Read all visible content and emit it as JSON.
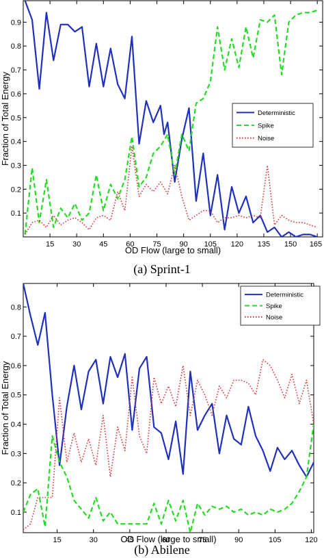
{
  "chart_data": [
    {
      "type": "line",
      "caption": "(a) Sprint-1",
      "xlabel": "OD Flow (large to small)",
      "ylabel": "Fraction of Total Energy",
      "xlim": [
        0,
        168
      ],
      "ylim": [
        0,
        0.99
      ],
      "xticks": [
        15,
        30,
        45,
        60,
        75,
        90,
        105,
        120,
        135,
        150,
        165
      ],
      "xtick_labels": [
        "15",
        "30",
        "45",
        "60",
        "75",
        "90",
        "105",
        "120",
        "135",
        "150",
        "165"
      ],
      "yticks": [
        0.1,
        0.2,
        0.3,
        0.4,
        0.5,
        0.6,
        0.7,
        0.8,
        0.9
      ],
      "ytick_labels": [
        "0.1",
        "0.2",
        "0.3",
        "0.4",
        "0.5",
        "0.6",
        "0.7",
        "0.8",
        "0.9"
      ],
      "grid": false,
      "legend_position": "middle-right",
      "series": [
        {
          "name": "Deterministic",
          "color": "#1f2fbf",
          "dash": "solid",
          "x": [
            1,
            5,
            9,
            13,
            17,
            21,
            25,
            29,
            33,
            37,
            41,
            45,
            49,
            53,
            57,
            61,
            65,
            69,
            73,
            77,
            79,
            81,
            85,
            89,
            93,
            97,
            101,
            105,
            109,
            113,
            117,
            121,
            125,
            129,
            133,
            137,
            141,
            145,
            149,
            153,
            157,
            161,
            165
          ],
          "y": [
            0.99,
            0.91,
            0.62,
            0.94,
            0.74,
            0.89,
            0.89,
            0.86,
            0.88,
            0.63,
            0.81,
            0.63,
            0.79,
            0.64,
            0.58,
            0.84,
            0.39,
            0.57,
            0.48,
            0.55,
            0.43,
            0.48,
            0.23,
            0.41,
            0.54,
            0.15,
            0.35,
            0.09,
            0.26,
            0.03,
            0.21,
            0.1,
            0.17,
            0.06,
            0.09,
            0.02,
            0.04,
            0.0,
            0.02,
            0.0,
            0.01,
            0.01,
            0.0
          ]
        },
        {
          "name": "Spike",
          "color": "#22dd22",
          "dash": "dashed",
          "x": [
            1,
            5,
            9,
            13,
            17,
            21,
            25,
            29,
            33,
            37,
            41,
            45,
            49,
            53,
            57,
            61,
            65,
            69,
            73,
            77,
            81,
            85,
            89,
            93,
            97,
            101,
            105,
            109,
            113,
            117,
            121,
            125,
            129,
            133,
            137,
            141,
            145,
            149,
            153,
            157,
            161,
            165
          ],
          "y": [
            0.01,
            0.29,
            0.06,
            0.24,
            0.04,
            0.12,
            0.08,
            0.14,
            0.07,
            0.1,
            0.26,
            0.11,
            0.22,
            0.16,
            0.24,
            0.42,
            0.21,
            0.25,
            0.35,
            0.38,
            0.43,
            0.26,
            0.43,
            0.36,
            0.56,
            0.58,
            0.65,
            0.88,
            0.7,
            0.83,
            0.71,
            0.88,
            0.75,
            0.91,
            0.9,
            0.93,
            0.68,
            0.9,
            0.93,
            0.94,
            0.94,
            0.95
          ]
        },
        {
          "name": "Noise",
          "color": "#dd3333",
          "dash": "dotted",
          "x": [
            1,
            5,
            9,
            13,
            17,
            21,
            25,
            29,
            33,
            37,
            41,
            45,
            49,
            53,
            57,
            61,
            65,
            69,
            73,
            77,
            81,
            85,
            89,
            93,
            97,
            101,
            105,
            109,
            113,
            117,
            121,
            125,
            129,
            133,
            137,
            141,
            145,
            149,
            153,
            157,
            161,
            165
          ],
          "y": [
            0.01,
            0.06,
            0.07,
            0.04,
            0.09,
            0.05,
            0.07,
            0.08,
            0.06,
            0.03,
            0.08,
            0.09,
            0.07,
            0.19,
            0.11,
            0.38,
            0.17,
            0.22,
            0.19,
            0.23,
            0.18,
            0.3,
            0.17,
            0.07,
            0.09,
            0.11,
            0.11,
            0.06,
            0.08,
            0.08,
            0.09,
            0.08,
            0.09,
            0.08,
            0.3,
            0.05,
            0.09,
            0.07,
            0.06,
            0.06,
            0.05,
            0.04
          ]
        }
      ]
    },
    {
      "type": "line",
      "caption": "(b) Abilene",
      "xlabel": "OD Flow (large to small)",
      "ylabel": "Fraction of Total Energy",
      "xlim": [
        1,
        121
      ],
      "ylim": [
        0.03,
        0.88
      ],
      "xticks": [
        15,
        30,
        45,
        60,
        75,
        90,
        105,
        120
      ],
      "xtick_labels": [
        "15",
        "30",
        "45",
        "60",
        "75",
        "90",
        "105",
        "120"
      ],
      "yticks": [
        0.1,
        0.2,
        0.3,
        0.4,
        0.5,
        0.6,
        0.7,
        0.8
      ],
      "ytick_labels": [
        "0.1",
        "0.2",
        "0.3",
        "0.4",
        "0.5",
        "0.6",
        "0.7",
        "0.8"
      ],
      "grid": false,
      "legend_position": "top-right",
      "series": [
        {
          "name": "Deterministic",
          "color": "#1f2fbf",
          "dash": "solid",
          "x": [
            1,
            4,
            7,
            10,
            13,
            16,
            19,
            22,
            25,
            28,
            31,
            34,
            37,
            40,
            43,
            46,
            49,
            52,
            55,
            58,
            61,
            64,
            67,
            70,
            73,
            76,
            79,
            82,
            85,
            88,
            91,
            94,
            97,
            100,
            103,
            106,
            109,
            112,
            115,
            118,
            121
          ],
          "y": [
            0.88,
            0.77,
            0.67,
            0.78,
            0.5,
            0.26,
            0.46,
            0.6,
            0.45,
            0.58,
            0.62,
            0.47,
            0.63,
            0.56,
            0.64,
            0.38,
            0.59,
            0.63,
            0.39,
            0.37,
            0.28,
            0.41,
            0.23,
            0.58,
            0.38,
            0.43,
            0.47,
            0.3,
            0.43,
            0.35,
            0.33,
            0.46,
            0.36,
            0.31,
            0.24,
            0.32,
            0.28,
            0.31,
            0.26,
            0.22,
            0.27
          ]
        },
        {
          "name": "Spike",
          "color": "#22dd22",
          "dash": "dashed",
          "x": [
            1,
            4,
            7,
            10,
            13,
            16,
            19,
            22,
            25,
            28,
            31,
            34,
            37,
            40,
            43,
            46,
            49,
            52,
            55,
            58,
            61,
            64,
            67,
            70,
            73,
            76,
            79,
            82,
            85,
            88,
            91,
            94,
            97,
            100,
            103,
            106,
            109,
            112,
            115,
            118,
            121
          ],
          "y": [
            0.1,
            0.16,
            0.18,
            0.05,
            0.36,
            0.27,
            0.22,
            0.14,
            0.11,
            0.08,
            0.15,
            0.07,
            0.1,
            0.06,
            0.06,
            0.06,
            0.06,
            0.06,
            0.13,
            0.06,
            0.14,
            0.07,
            0.14,
            0.03,
            0.13,
            0.09,
            0.12,
            0.11,
            0.12,
            0.1,
            0.11,
            0.09,
            0.1,
            0.09,
            0.11,
            0.1,
            0.11,
            0.13,
            0.17,
            0.22,
            0.4
          ]
        },
        {
          "name": "Noise",
          "color": "#dd3333",
          "dash": "dotted",
          "x": [
            1,
            4,
            7,
            10,
            13,
            16,
            19,
            22,
            25,
            28,
            31,
            34,
            37,
            40,
            43,
            46,
            49,
            52,
            55,
            58,
            61,
            64,
            67,
            70,
            73,
            76,
            79,
            82,
            85,
            88,
            91,
            94,
            97,
            100,
            103,
            106,
            109,
            112,
            115,
            118,
            121
          ],
          "y": [
            0.04,
            0.06,
            0.15,
            0.15,
            0.15,
            0.49,
            0.27,
            0.37,
            0.27,
            0.35,
            0.26,
            0.43,
            0.22,
            0.39,
            0.31,
            0.56,
            0.36,
            0.3,
            0.56,
            0.47,
            0.53,
            0.46,
            0.6,
            0.43,
            0.55,
            0.5,
            0.43,
            0.53,
            0.49,
            0.55,
            0.55,
            0.54,
            0.5,
            0.62,
            0.6,
            0.55,
            0.49,
            0.57,
            0.47,
            0.55,
            0.4
          ]
        }
      ]
    }
  ]
}
